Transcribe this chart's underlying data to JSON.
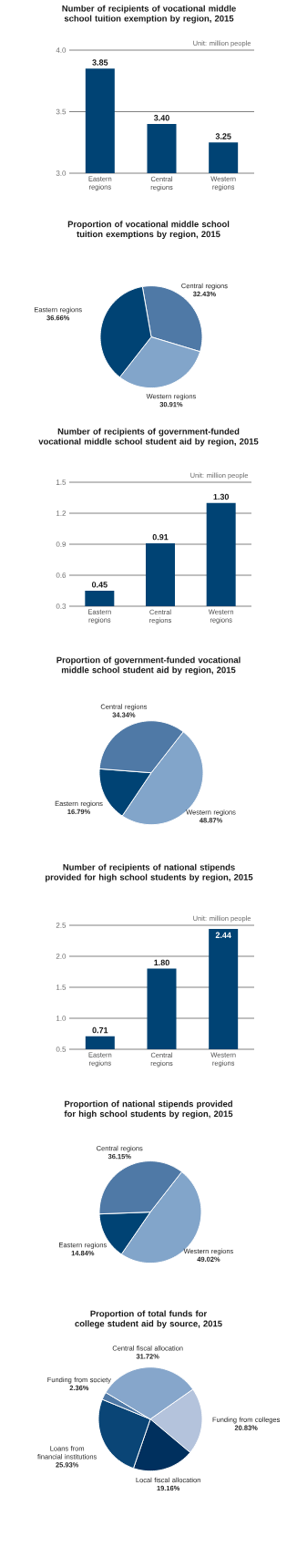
{
  "chart_data": [
    {
      "type": "bar",
      "title": "Number of recipients of vocational middle school tuition exemption by region, 2015",
      "annotations": [
        "Unit: million people"
      ],
      "categories": [
        "Eastern regions",
        "Central regions",
        "Western regions"
      ],
      "values": [
        3.85,
        3.4,
        3.25
      ],
      "value_labels": [
        "3.85",
        "3.40",
        "3.25"
      ],
      "color": "#004374",
      "ylim": [
        3.0,
        4.0
      ],
      "yticks": [
        {
          "value": 3.0,
          "label": "3.0"
        },
        3.5,
        {
          "value": 4.0,
          "label": "4.0"
        }
      ],
      "grid": "y"
    },
    {
      "type": "pie",
      "title": "Proportion of vocational middle school tuition exemptions by region, 2015",
      "categories": [
        "Central regions",
        "Western regions",
        "Eastern regions"
      ],
      "values": [
        32.43,
        30.91,
        36.66
      ],
      "colors": [
        "#4f79a6",
        "#82a5ca",
        "#004374"
      ],
      "value_labels": [
        "32.43%",
        "30.91%",
        "36.66%"
      ]
    },
    {
      "type": "bar",
      "title": "Number of recipients of government-funded vocational middle school student aid by region, 2015",
      "annotations": [
        "Unit: million people"
      ],
      "categories": [
        "Eastern regions",
        "Central regions",
        "Western regions"
      ],
      "values": [
        0.45,
        0.91,
        1.3
      ],
      "value_labels": [
        "0.45",
        "0.91",
        "1.30"
      ],
      "color": "#004374",
      "ylim": [
        0.3,
        1.5
      ],
      "yticks": [
        0.3,
        0.6,
        0.9,
        1.2,
        1.5
      ],
      "grid": "y"
    },
    {
      "type": "pie",
      "title": "Proportion of government-funded vocational middle school student aid by region, 2015",
      "categories": [
        "Western regions",
        "Eastern regions",
        "Central regions"
      ],
      "values": [
        48.87,
        16.79,
        34.34
      ],
      "colors": [
        "#82a5ca",
        "#004374",
        "#4f79a6"
      ],
      "value_labels": [
        "48.87%",
        "16.79%",
        "34.34%"
      ]
    },
    {
      "type": "bar",
      "title": "Number of recipients of national stipends provided for high school students by region, 2015",
      "annotations": [
        "Unit: million people"
      ],
      "categories": [
        "Eastern regions",
        "Central regions",
        "Western regions"
      ],
      "values": [
        0.71,
        1.8,
        2.44
      ],
      "value_labels": [
        "0.71",
        "1.80",
        "2.44"
      ],
      "color": "#004374",
      "ylim": [
        0.5,
        2.5
      ],
      "yticks": [
        0.5,
        {
          "value": 1.0,
          "label": "1.0"
        },
        1.5,
        {
          "value": 2.0,
          "label": "2.0"
        },
        2.5
      ],
      "grid": "y"
    },
    {
      "type": "pie",
      "title": "Proportion of national stipends provided for high school students by region, 2015",
      "categories": [
        "Western regions",
        "Eastern regions",
        "Central regions"
      ],
      "values": [
        49.02,
        14.84,
        36.15
      ],
      "colors": [
        "#82a5ca",
        "#004374",
        "#4f79a6"
      ],
      "value_labels": [
        "49.02%",
        "14.84%",
        "36.15%"
      ]
    },
    {
      "type": "pie",
      "title": "Proportion of total funds for college student aid by source, 2015",
      "categories": [
        "Funding from colleges",
        "Local fiscal allocation",
        "Loans from financial institutions",
        "Funding from society",
        "Central fiscal allocation"
      ],
      "values": [
        20.83,
        19.16,
        25.93,
        2.36,
        31.72
      ],
      "colors": [
        "#b4c3dc",
        "#00305e",
        "#0a4576",
        "#4f79a6",
        "#86a6cb"
      ],
      "value_labels": [
        "20.83%",
        "19.16%",
        "25.93%",
        "2.36%",
        "31.72%"
      ]
    }
  ]
}
